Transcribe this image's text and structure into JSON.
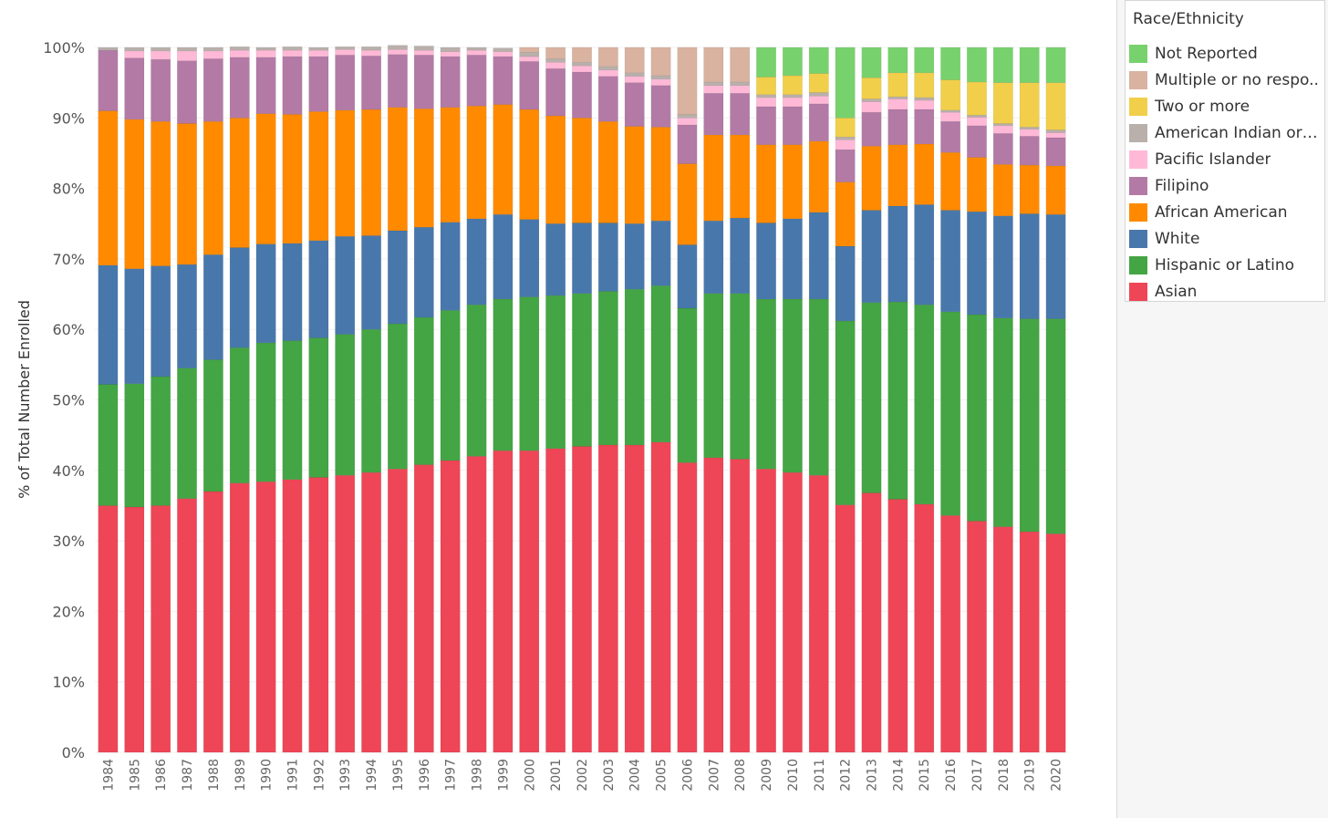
{
  "legend": {
    "title": "Race/Ethnicity",
    "entries": [
      {
        "label": "Not Reported",
        "color": "#77d26d"
      },
      {
        "label": "Multiple or no respo..",
        "color": "#d9b2a0"
      },
      {
        "label": "Two or more",
        "color": "#f2cf4a"
      },
      {
        "label": "American Indian or A..",
        "color": "#b9b0ab"
      },
      {
        "label": "Pacific Islander",
        "color": "#ffb9d7"
      },
      {
        "label": "Filipino",
        "color": "#b37aa6"
      },
      {
        "label": "African American",
        "color": "#ff8a00"
      },
      {
        "label": "White",
        "color": "#4878ab"
      },
      {
        "label": "Hispanic or Latino",
        "color": "#44a544"
      },
      {
        "label": "Asian",
        "color": "#ee4656"
      }
    ]
  },
  "chart_data": {
    "type": "bar",
    "stacked": true,
    "ylabel": "% of Total Number Enrolled",
    "xlabel": "",
    "ylim": [
      0,
      100
    ],
    "y_ticks": [
      "0%",
      "10%",
      "20%",
      "30%",
      "40%",
      "50%",
      "60%",
      "70%",
      "80%",
      "90%",
      "100%"
    ],
    "categories": [
      "1984",
      "1985",
      "1986",
      "1987",
      "1988",
      "1989",
      "1990",
      "1991",
      "1992",
      "1993",
      "1994",
      "1995",
      "1996",
      "1997",
      "1998",
      "1999",
      "2000",
      "2001",
      "2002",
      "2003",
      "2004",
      "2005",
      "2006",
      "2007",
      "2008",
      "2009",
      "2010",
      "2011",
      "2012",
      "2013",
      "2014",
      "2015",
      "2016",
      "2017",
      "2018",
      "2019",
      "2020"
    ],
    "series": [
      {
        "name": "Asian",
        "color": "#ee4656",
        "values": [
          35.0,
          34.8,
          35.0,
          36.0,
          37.0,
          38.2,
          38.4,
          38.7,
          39.0,
          39.3,
          39.7,
          40.2,
          40.8,
          41.4,
          42.0,
          42.8,
          42.8,
          43.1,
          43.4,
          43.6,
          43.6,
          44.0,
          41.1,
          41.8,
          41.6,
          40.2,
          39.7,
          39.3,
          35.1,
          36.8,
          35.9,
          35.2,
          33.6,
          32.8,
          32.0,
          31.3,
          31.0
        ]
      },
      {
        "name": "Hispanic or Latino",
        "color": "#44a544",
        "values": [
          17.2,
          17.5,
          18.3,
          18.5,
          18.7,
          19.2,
          19.7,
          19.7,
          19.8,
          20.0,
          20.3,
          20.6,
          20.9,
          21.3,
          21.5,
          21.5,
          21.8,
          21.7,
          21.7,
          21.8,
          22.1,
          22.2,
          21.9,
          23.3,
          23.5,
          24.1,
          24.6,
          25.0,
          26.1,
          27.0,
          28.0,
          28.3,
          28.9,
          29.3,
          29.6,
          30.2,
          30.5
        ]
      },
      {
        "name": "White",
        "color": "#4878ab",
        "values": [
          16.9,
          16.3,
          15.7,
          14.7,
          14.9,
          14.2,
          14.0,
          13.8,
          13.8,
          13.9,
          13.3,
          13.2,
          12.8,
          12.5,
          12.2,
          12.0,
          11.0,
          10.2,
          10.0,
          9.7,
          9.3,
          9.2,
          9.0,
          10.3,
          10.7,
          10.8,
          11.4,
          12.3,
          10.6,
          13.1,
          13.6,
          14.2,
          14.4,
          14.6,
          14.5,
          14.9,
          14.8
        ]
      },
      {
        "name": "African American",
        "color": "#ff8a00",
        "values": [
          21.9,
          21.2,
          20.5,
          20.0,
          18.9,
          18.4,
          18.5,
          18.3,
          18.3,
          17.9,
          17.9,
          17.5,
          16.8,
          16.3,
          16.0,
          15.6,
          15.6,
          15.3,
          14.9,
          14.4,
          13.8,
          13.3,
          11.5,
          12.2,
          11.8,
          11.1,
          10.5,
          10.1,
          9.1,
          9.1,
          8.7,
          8.6,
          8.2,
          7.7,
          7.3,
          6.9,
          6.9
        ]
      },
      {
        "name": "Filipino",
        "color": "#b37aa6",
        "values": [
          8.6,
          8.7,
          8.8,
          8.9,
          8.9,
          8.6,
          8.0,
          8.2,
          7.8,
          7.8,
          7.6,
          7.5,
          7.6,
          7.2,
          7.2,
          6.8,
          6.8,
          6.7,
          6.5,
          6.4,
          6.2,
          5.9,
          5.5,
          5.9,
          5.9,
          5.4,
          5.4,
          5.3,
          4.6,
          4.8,
          5.0,
          4.9,
          4.4,
          4.5,
          4.4,
          4.1,
          4.0
        ]
      },
      {
        "name": "Pacific Islander",
        "color": "#ffb9d7",
        "values": [
          0.0,
          1.0,
          1.2,
          1.4,
          1.1,
          1.0,
          1.0,
          0.9,
          0.9,
          0.8,
          0.8,
          0.7,
          0.7,
          0.7,
          0.7,
          0.7,
          0.7,
          0.9,
          0.9,
          0.9,
          0.9,
          0.9,
          1.0,
          1.1,
          1.1,
          1.3,
          1.3,
          1.1,
          1.4,
          1.5,
          1.5,
          1.3,
          1.3,
          1.2,
          1.1,
          1.0,
          0.7
        ]
      },
      {
        "name": "American Indian or A..",
        "color": "#b9b0ab",
        "values": [
          0.4,
          0.5,
          0.5,
          0.5,
          0.5,
          0.5,
          0.4,
          0.5,
          0.4,
          0.4,
          0.5,
          0.6,
          0.6,
          0.6,
          0.4,
          0.5,
          0.6,
          0.5,
          0.5,
          0.5,
          0.5,
          0.5,
          0.5,
          0.5,
          0.5,
          0.4,
          0.4,
          0.5,
          0.4,
          0.4,
          0.3,
          0.4,
          0.3,
          0.3,
          0.3,
          0.3,
          0.4
        ]
      },
      {
        "name": "Multiple or no respo..",
        "color": "#d9b2a0",
        "values": [
          0.0,
          0.0,
          0.0,
          0.0,
          0.0,
          0.0,
          0.0,
          0.0,
          0.0,
          0.0,
          0.0,
          0.0,
          0.0,
          0.0,
          0.0,
          0.0,
          0.7,
          1.6,
          2.1,
          2.7,
          3.6,
          4.0,
          9.5,
          4.9,
          4.9,
          0.0,
          0.0,
          0.0,
          0.0,
          0.0,
          0.0,
          0.0,
          0.0,
          0.0,
          0.0,
          0.0,
          0.0
        ]
      },
      {
        "name": "Two or more",
        "color": "#f2cf4a",
        "values": [
          0.0,
          0.0,
          0.0,
          0.0,
          0.0,
          0.0,
          0.0,
          0.0,
          0.0,
          0.0,
          0.0,
          0.0,
          0.0,
          0.0,
          0.0,
          0.0,
          0.0,
          0.0,
          0.0,
          0.0,
          0.0,
          0.0,
          0.0,
          0.0,
          0.0,
          2.5,
          2.7,
          2.7,
          2.7,
          3.0,
          3.4,
          3.5,
          4.3,
          4.7,
          5.8,
          6.3,
          6.7
        ]
      },
      {
        "name": "Not Reported",
        "color": "#77d26d",
        "values": [
          0.0,
          0.0,
          0.0,
          0.0,
          0.0,
          0.0,
          0.0,
          0.0,
          0.0,
          0.0,
          0.0,
          0.0,
          0.0,
          0.0,
          0.0,
          0.0,
          0.0,
          0.0,
          0.0,
          0.0,
          0.0,
          0.0,
          0.0,
          0.0,
          0.0,
          4.2,
          4.0,
          3.7,
          10.0,
          4.3,
          3.6,
          3.6,
          4.6,
          4.9,
          5.0,
          5.0,
          5.0
        ]
      }
    ]
  }
}
